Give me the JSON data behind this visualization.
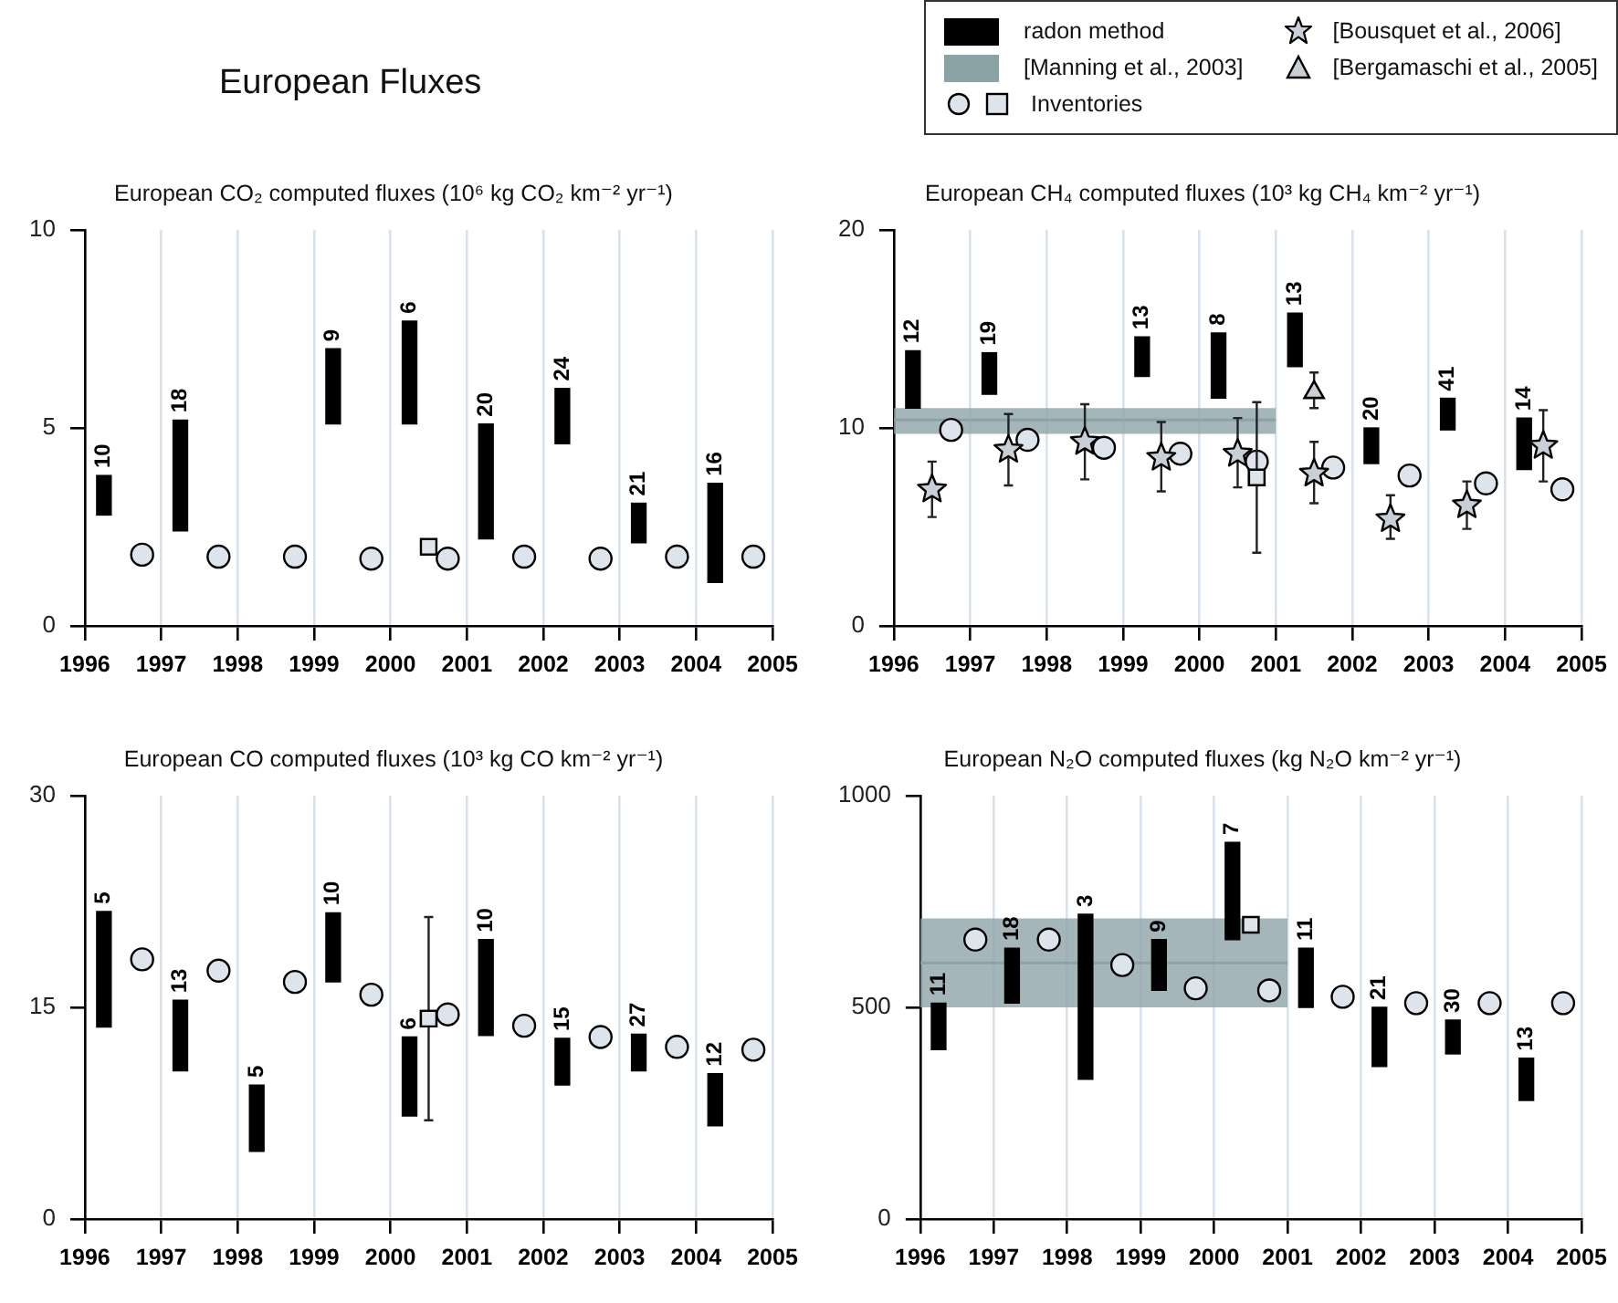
{
  "chart_data": [
    {
      "type": "bar",
      "title": "European CO₂ computed fluxes (10⁶ kg CO₂ km⁻² yr⁻¹)",
      "xlim": [
        1996,
        2005
      ],
      "xticks": [
        1996,
        1997,
        1998,
        1999,
        2000,
        2001,
        2002,
        2003,
        2004,
        2005
      ],
      "ylim": [
        0,
        10
      ],
      "yticks": [
        0,
        5,
        10
      ],
      "grid": "x",
      "legend": false,
      "annotations": [
        "European Fluxes",
        {
          "text": "10",
          "x": 1996.25,
          "y": 3.8
        },
        {
          "text": "18",
          "x": 1997.25,
          "y": 5.2
        },
        {
          "text": "9",
          "x": 1999.25,
          "y": 7.0
        },
        {
          "text": "6",
          "x": 2000.25,
          "y": 7.7
        },
        {
          "text": "20",
          "x": 2001.25,
          "y": 5.1
        },
        {
          "text": "24",
          "x": 2002.25,
          "y": 6.0
        },
        {
          "text": "21",
          "x": 2003.25,
          "y": 3.1
        },
        {
          "text": "16",
          "x": 2004.25,
          "y": 3.6
        }
      ],
      "series": [
        {
          "color": "#000000",
          "x": [
            1996.25,
            1997.25,
            1998.25,
            1999.25,
            2000.25,
            2001.25,
            2002.25,
            2003.25,
            2004.25
          ],
          "base": [
            2.8,
            2.4,
            null,
            5.1,
            5.1,
            2.2,
            4.6,
            2.1,
            1.1
          ],
          "values": [
            1.0,
            2.8,
            null,
            1.9,
            2.6,
            2.9,
            1.4,
            1.0,
            2.5
          ]
        },
        {
          "type": "scatter",
          "marker": "circle",
          "color": "#dde4ec",
          "x": [
            1996.75,
            1997.75,
            1998.75,
            1999.75,
            2000.75,
            2001.75,
            2002.75,
            2003.75,
            2004.75
          ],
          "values": [
            1.8,
            1.75,
            1.75,
            1.7,
            1.7,
            1.75,
            1.7,
            1.75,
            1.75
          ]
        },
        {
          "type": "scatter",
          "marker": "square",
          "color": "#dde4ec",
          "x": [
            2000.5
          ],
          "values": [
            2.0
          ]
        }
      ]
    },
    {
      "type": "bar",
      "title": "European CH₄ computed fluxes (10³ kg CH₄ km⁻² yr⁻¹)",
      "xlim": [
        1996,
        2005
      ],
      "xticks": [
        1996,
        1997,
        1998,
        1999,
        2000,
        2001,
        2002,
        2003,
        2004,
        2005
      ],
      "ylim": [
        0,
        20
      ],
      "yticks": [
        0,
        10,
        20
      ],
      "grid": "x",
      "legend": "top right",
      "annotations": [
        {
          "text": "12",
          "x": 1996.25,
          "y": 13.9
        },
        {
          "text": "19",
          "x": 1997.25,
          "y": 13.8
        },
        {
          "text": "13",
          "x": 1999.25,
          "y": 14.6
        },
        {
          "text": "8",
          "x": 2000.25,
          "y": 14.8
        },
        {
          "text": "13",
          "x": 2001.25,
          "y": 15.8
        },
        {
          "text": "20",
          "x": 2002.25,
          "y": 10.0
        },
        {
          "text": "41",
          "x": 2003.25,
          "y": 11.5
        },
        {
          "text": "14",
          "x": 2004.25,
          "y": 10.5
        }
      ],
      "series": [
        {
          "name": "radon method",
          "color": "#000000",
          "x": [
            1996.25,
            1997.25,
            1998.25,
            1999.25,
            2000.25,
            2001.25,
            2002.25,
            2003.25,
            2004.25
          ],
          "base": [
            11.0,
            11.7,
            null,
            12.6,
            11.5,
            13.1,
            8.2,
            9.9,
            7.9
          ],
          "values": [
            2.9,
            2.1,
            null,
            2.0,
            3.3,
            2.7,
            1.8,
            1.6,
            2.6
          ]
        },
        {
          "type": "line",
          "name": "[Manning et al., 2003]",
          "color": "#8ba2a6",
          "x": [
            1996,
            2001
          ],
          "values": [
            10.4,
            10.4
          ],
          "lower": [
            9.7,
            9.7
          ],
          "upper": [
            11.0,
            11.0
          ]
        },
        {
          "type": "scatter",
          "name": "Inventories",
          "marker": "circle",
          "color": "#dde4ec",
          "x": [
            1996.75,
            1997.75,
            1998.75,
            1999.75,
            2000.75,
            2001.75,
            2002.75,
            2003.75,
            2004.75
          ],
          "values": [
            9.9,
            9.4,
            9.0,
            8.7,
            8.3,
            8.0,
            7.6,
            7.2,
            6.9
          ]
        },
        {
          "type": "scatter",
          "marker": "square",
          "color": "#dde4ec",
          "x": [
            2000.75
          ],
          "values": [
            7.5
          ],
          "errors": [
            [
              3.7,
              11.3
            ]
          ]
        },
        {
          "type": "scatter",
          "name": "[Bousquet et al., 2006]",
          "marker": "star",
          "color": "#c8cfd6",
          "x": [
            1996.5,
            1997.5,
            1998.5,
            1999.5,
            2000.5,
            2001.5,
            2002.5,
            2003.5,
            2004.5
          ],
          "values": [
            6.9,
            8.9,
            9.3,
            8.5,
            8.7,
            7.7,
            5.4,
            6.1,
            9.1
          ],
          "errors": [
            [
              5.5,
              8.3
            ],
            [
              7.1,
              10.7
            ],
            [
              7.4,
              11.2
            ],
            [
              6.8,
              10.3
            ],
            [
              7.0,
              10.5
            ],
            [
              6.2,
              9.3
            ],
            [
              4.4,
              6.6
            ],
            [
              4.9,
              7.3
            ],
            [
              7.3,
              10.9
            ]
          ]
        },
        {
          "type": "scatter",
          "name": "[Bergamaschi et al., 2005]",
          "marker": "triangle",
          "color": "#c8cfd6",
          "x": [
            2001.5
          ],
          "values": [
            11.8
          ],
          "errors": [
            [
              11.0,
              12.8
            ]
          ]
        }
      ]
    },
    {
      "type": "bar",
      "title": "European CO computed fluxes (10³ kg CO km⁻² yr⁻¹)",
      "xlim": [
        1996,
        2005
      ],
      "xticks": [
        1996,
        1997,
        1998,
        1999,
        2000,
        2001,
        2002,
        2003,
        2004,
        2005
      ],
      "ylim": [
        0,
        30
      ],
      "yticks": [
        0,
        15,
        30
      ],
      "grid": "x",
      "legend": false,
      "annotations": [
        {
          "text": "5",
          "x": 1996.25,
          "y": 21.8
        },
        {
          "text": "13",
          "x": 1997.25,
          "y": 15.5
        },
        {
          "text": "5",
          "x": 1998.25,
          "y": 9.5
        },
        {
          "text": "10",
          "x": 1999.25,
          "y": 21.7
        },
        {
          "text": "6",
          "x": 2000.25,
          "y": 12.9
        },
        {
          "text": "10",
          "x": 2001.25,
          "y": 19.8
        },
        {
          "text": "15",
          "x": 2002.25,
          "y": 12.8
        },
        {
          "text": "27",
          "x": 2003.25,
          "y": 13.1
        },
        {
          "text": "12",
          "x": 2004.25,
          "y": 10.3
        }
      ],
      "series": [
        {
          "color": "#000000",
          "x": [
            1996.25,
            1997.25,
            1998.25,
            1999.25,
            2000.25,
            2001.25,
            2002.25,
            2003.25,
            2004.25
          ],
          "base": [
            13.6,
            10.5,
            4.8,
            16.8,
            7.3,
            13.0,
            9.5,
            10.5,
            6.6
          ],
          "values": [
            8.2,
            5.0,
            4.7,
            4.9,
            5.6,
            6.8,
            3.3,
            2.6,
            3.7
          ]
        },
        {
          "type": "scatter",
          "marker": "circle",
          "color": "#dde4ec",
          "x": [
            1996.75,
            1997.75,
            1998.75,
            1999.75,
            2000.75,
            2001.75,
            2002.75,
            2003.75,
            2004.75
          ],
          "values": [
            18.4,
            17.6,
            16.8,
            15.9,
            14.5,
            13.7,
            12.9,
            12.2,
            12.0
          ]
        },
        {
          "type": "scatter",
          "marker": "square",
          "color": "#dde4ec",
          "x": [
            2000.5
          ],
          "values": [
            14.2
          ],
          "errors": [
            [
              7.0,
              21.4
            ]
          ]
        }
      ]
    },
    {
      "type": "bar",
      "title": "European N₂O computed fluxes (kg N₂O km⁻² yr⁻¹)",
      "xlim": [
        1996,
        2005
      ],
      "xticks": [
        1996,
        1997,
        1998,
        1999,
        2000,
        2001,
        2002,
        2003,
        2004,
        2005
      ],
      "ylim": [
        0,
        1000
      ],
      "yticks": [
        0,
        500,
        1000
      ],
      "grid": "x",
      "legend": false,
      "annotations": [
        {
          "text": "11",
          "x": 1996.25,
          "y": 510
        },
        {
          "text": "18",
          "x": 1997.25,
          "y": 640
        },
        {
          "text": "3",
          "x": 1998.25,
          "y": 720
        },
        {
          "text": "9",
          "x": 1999.25,
          "y": 660
        },
        {
          "text": "7",
          "x": 2000.25,
          "y": 890
        },
        {
          "text": "11",
          "x": 2001.25,
          "y": 640
        },
        {
          "text": "21",
          "x": 2002.25,
          "y": 500
        },
        {
          "text": "30",
          "x": 2003.25,
          "y": 470
        },
        {
          "text": "13",
          "x": 2004.25,
          "y": 380
        }
      ],
      "series": [
        {
          "color": "#000000",
          "x": [
            1996.25,
            1997.25,
            1998.25,
            1999.25,
            2000.25,
            2001.25,
            2002.25,
            2003.25,
            2004.25
          ],
          "base": [
            400,
            510,
            330,
            540,
            660,
            500,
            360,
            390,
            280
          ],
          "values": [
            110,
            130,
            390,
            120,
            230,
            140,
            140,
            80,
            100
          ]
        },
        {
          "type": "line",
          "color": "#8ba2a6",
          "x": [
            1996,
            2001
          ],
          "values": [
            605,
            605
          ],
          "lower": [
            500,
            500
          ],
          "upper": [
            710,
            710
          ]
        },
        {
          "type": "scatter",
          "marker": "circle",
          "color": "#dde4ec",
          "x": [
            1996.75,
            1997.75,
            1998.75,
            1999.75,
            2000.75,
            2001.75,
            2002.75,
            2003.75,
            2004.75
          ],
          "values": [
            660,
            660,
            600,
            545,
            540,
            525,
            510,
            510,
            510
          ]
        },
        {
          "type": "scatter",
          "marker": "square",
          "color": "#dde4ec",
          "x": [
            2000.5
          ],
          "values": [
            695
          ]
        }
      ]
    }
  ]
}
